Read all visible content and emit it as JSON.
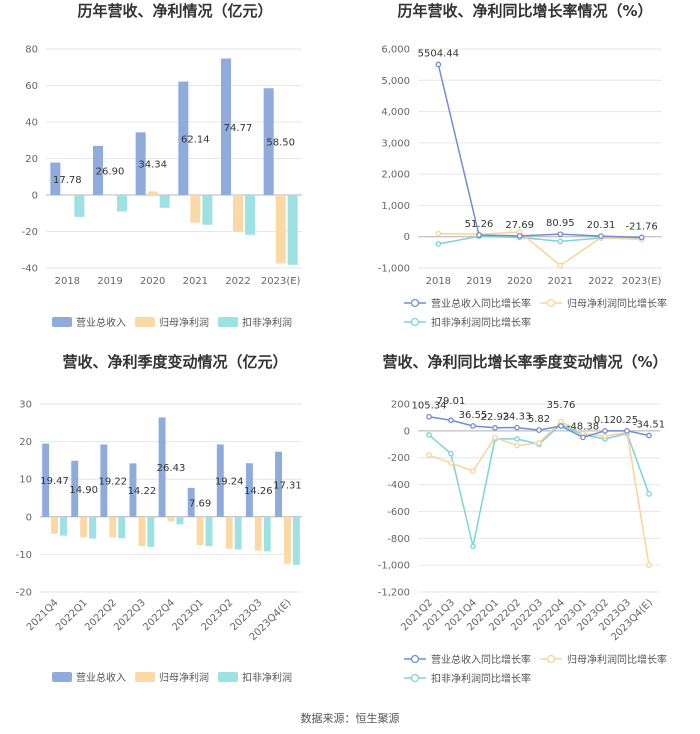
{
  "source_text": "数据来源：恒生聚源",
  "chart_data": [
    {
      "type": "bar",
      "title": "历年营收、净利情况（亿元）",
      "categories": [
        "2018",
        "2019",
        "2020",
        "2021",
        "2022",
        "2023(E)"
      ],
      "ylim": [
        -40,
        80
      ],
      "yticks": [
        -40,
        -20,
        0,
        20,
        40,
        60,
        80
      ],
      "series": [
        {
          "name": "营业总收入",
          "color": "#8fabdc",
          "values": [
            17.78,
            26.9,
            34.34,
            62.14,
            74.77,
            58.5
          ],
          "labels": [
            "17.78",
            "26.90",
            "34.34",
            "62.14",
            "74.77",
            "58.50"
          ]
        },
        {
          "name": "归母净利润",
          "color": "#fbd9a5",
          "values": [
            -0.5,
            -0.4,
            2.0,
            -15.2,
            -20.1,
            -37.5
          ]
        },
        {
          "name": "扣非净利润",
          "color": "#9ee1e3",
          "values": [
            -12.0,
            -9.0,
            -7.0,
            -16.3,
            -21.8,
            -38.3
          ]
        }
      ],
      "legend_position": "bottom"
    },
    {
      "type": "line",
      "title": "历年营收、净利同比增长率情况（%）",
      "categories": [
        "2018",
        "2019",
        "2020",
        "2021",
        "2022",
        "2023(E)"
      ],
      "ylim": [
        -1000,
        6000
      ],
      "yticks": [
        -1000,
        0,
        1000,
        2000,
        3000,
        4000,
        5000,
        6000
      ],
      "series": [
        {
          "name": "营业总收入同比增长率",
          "color": "#6f8fd0",
          "values": [
            5504.44,
            51.26,
            27.69,
            80.95,
            20.31,
            -21.76
          ],
          "labels": [
            "5504.44",
            "51.26",
            "27.69",
            "80.95",
            "20.31",
            "-21.76"
          ]
        },
        {
          "name": "归母净利润同比增长率",
          "color": "#f8d39b",
          "values": [
            100,
            80,
            150,
            -920,
            -30,
            -85
          ]
        },
        {
          "name": "扣非净利润同比增长率",
          "color": "#7dd3d9",
          "values": [
            -230,
            10,
            -20,
            -150,
            -40,
            -60
          ]
        }
      ],
      "legend_position": "bottom"
    },
    {
      "type": "bar",
      "title": "营收、净利季度变动情况（亿元）",
      "categories": [
        "2021Q4",
        "2022Q1",
        "2022Q2",
        "2022Q3",
        "2022Q4",
        "2023Q1",
        "2023Q2",
        "2023Q3",
        "2023Q4(E)"
      ],
      "ylim": [
        -20,
        30
      ],
      "yticks": [
        -20,
        -10,
        0,
        10,
        20,
        30
      ],
      "series": [
        {
          "name": "营业总收入",
          "color": "#8fabdc",
          "values": [
            19.47,
            14.9,
            19.22,
            14.22,
            26.43,
            7.69,
            19.24,
            14.26,
            17.31
          ],
          "labels": [
            "19.47",
            "14.90",
            "19.22",
            "14.22",
            "26.43",
            "7.69",
            "19.24",
            "14.26",
            "17.31"
          ]
        },
        {
          "name": "归母净利润",
          "color": "#fbd9a5",
          "values": [
            -4.5,
            -5.5,
            -5.5,
            -7.8,
            -1.2,
            -7.5,
            -8.5,
            -9.0,
            -12.5
          ]
        },
        {
          "name": "扣非净利润",
          "color": "#9ee1e3",
          "values": [
            -5.0,
            -5.8,
            -5.7,
            -8.0,
            -2.0,
            -7.8,
            -8.7,
            -9.2,
            -12.8
          ]
        }
      ],
      "legend_position": "bottom"
    },
    {
      "type": "line",
      "title": "营收、净利同比增长率季度变动情况（%）",
      "categories": [
        "2021Q2",
        "2021Q3",
        "2021Q4",
        "2022Q1",
        "2022Q2",
        "2022Q3",
        "2022Q4",
        "2023Q1",
        "2023Q2",
        "2023Q3",
        "2023Q4(E)"
      ],
      "ylim": [
        -1200,
        200
      ],
      "yticks": [
        -1200,
        -1000,
        -800,
        -600,
        -400,
        -200,
        0,
        200
      ],
      "series": [
        {
          "name": "营业总收入同比增长率",
          "color": "#6f8fd0",
          "values": [
            105.34,
            79.01,
            36.55,
            22.93,
            24.33,
            5.82,
            35.76,
            -48.38,
            0.12,
            0.25,
            -34.51
          ],
          "labels": [
            "105.34",
            "79.01",
            "36.55",
            "22.93",
            "24.33",
            "5.82",
            "35.76",
            "-48.38",
            "0.12",
            "0.25",
            "-34.51"
          ]
        },
        {
          "name": "归母净利润同比增长率",
          "color": "#f8d39b",
          "values": [
            -180,
            -240,
            -300,
            -50,
            -110,
            -90,
            70,
            -20,
            -40,
            -10,
            -1000
          ]
        },
        {
          "name": "扣非净利润同比增长率",
          "color": "#7dd3d9",
          "values": [
            -30,
            -170,
            -860,
            -60,
            -60,
            -100,
            50,
            -30,
            -60,
            -20,
            -470
          ]
        }
      ],
      "legend_position": "bottom"
    }
  ]
}
